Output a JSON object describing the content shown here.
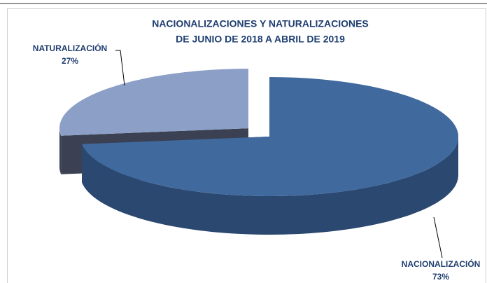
{
  "chart_data": {
    "type": "pie3d",
    "title": "NACIONALIZACIONES Y NATURALIZACIONES",
    "subtitle": "DE JUNIO DE 2018 A ABRIL DE 2019",
    "categories": [
      "NACIONALIZACIÓN",
      "NATURALIZACIÓN"
    ],
    "values": [
      73,
      27
    ],
    "value_labels": [
      "73%",
      "27%"
    ],
    "colors": [
      "#40699e",
      "#8b9fc7"
    ],
    "side_colors": [
      "#2a4870",
      "#3b4152"
    ]
  }
}
